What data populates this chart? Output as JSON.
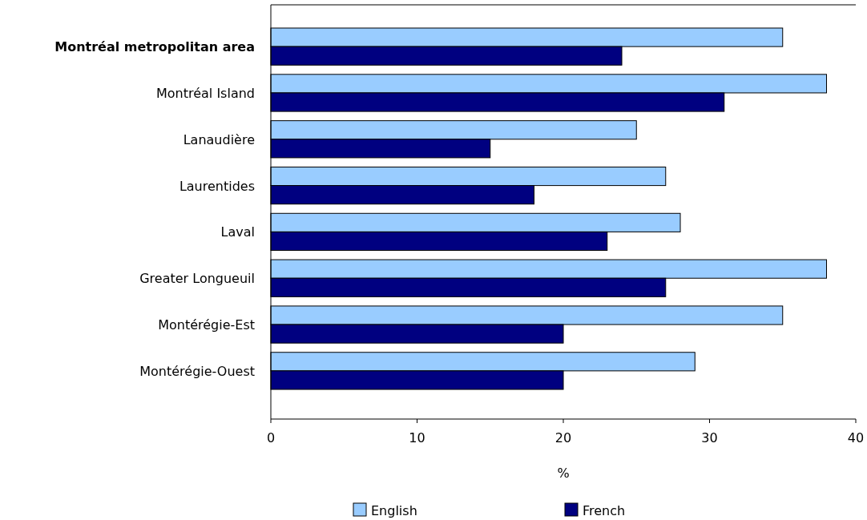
{
  "chart_data": {
    "type": "bar",
    "orientation": "horizontal",
    "xlabel": "%",
    "categories": [
      "Montréal metropolitan area",
      "Montréal Island",
      "Lanaudière",
      "Laurentides",
      "Laval",
      "Greater Longueuil",
      "Montérégie-Est",
      "Montérégie-Ouest"
    ],
    "series": [
      {
        "name": "English",
        "color": "#99ccff",
        "values": [
          35,
          38,
          25,
          27,
          28,
          38,
          35,
          29
        ]
      },
      {
        "name": "French",
        "color": "#000080",
        "values": [
          24,
          31,
          15,
          18,
          23,
          27,
          20,
          20
        ]
      }
    ],
    "xlim": [
      0,
      40
    ],
    "xticks": [
      0,
      10,
      20,
      30,
      40
    ],
    "grid": false,
    "legend": "bottom"
  }
}
